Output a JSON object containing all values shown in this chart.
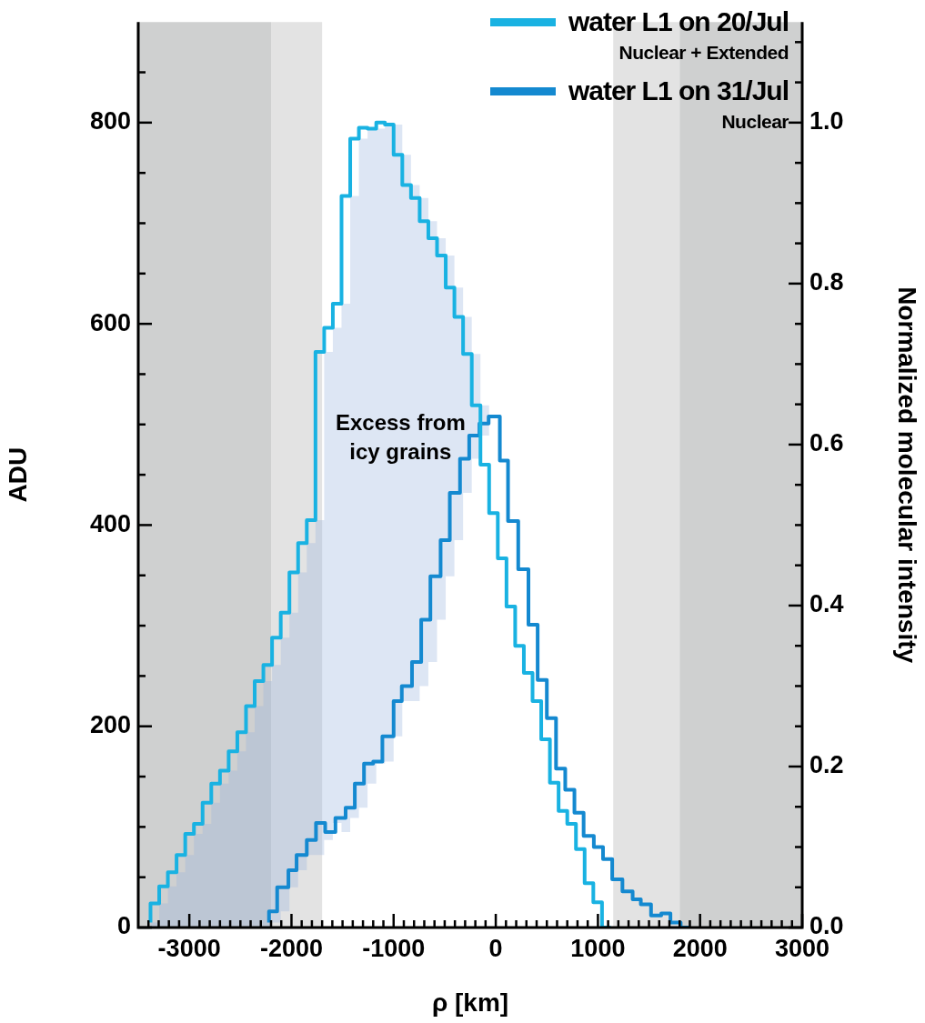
{
  "chart_data": {
    "type": "step",
    "xlabel": "ρ [km]",
    "ylabel": "ADU",
    "y2label": "Normalized molecular intensity",
    "xlim": [
      -3500,
      3000
    ],
    "ylim": [
      0,
      900
    ],
    "y2lim": [
      0,
      1.125
    ],
    "grid": false,
    "legend": "top right",
    "xticks": [
      {
        "value": -3400,
        "label": null
      },
      {
        "value": -3300,
        "label": null
      },
      {
        "value": -3200,
        "label": null
      },
      {
        "value": -3100,
        "label": null
      },
      -3000,
      {
        "value": -2900,
        "label": null
      },
      {
        "value": -2800,
        "label": null
      },
      {
        "value": -2700,
        "label": null
      },
      {
        "value": -2600,
        "label": null
      },
      {
        "value": -2500,
        "label": null
      },
      {
        "value": -2400,
        "label": null
      },
      {
        "value": -2300,
        "label": null
      },
      {
        "value": -2200,
        "label": null
      },
      {
        "value": -2100,
        "label": null
      },
      -2000,
      {
        "value": -1900,
        "label": null
      },
      {
        "value": -1800,
        "label": null
      },
      {
        "value": -1700,
        "label": null
      },
      {
        "value": -1600,
        "label": null
      },
      {
        "value": -1500,
        "label": null
      },
      {
        "value": -1400,
        "label": null
      },
      {
        "value": -1300,
        "label": null
      },
      {
        "value": -1200,
        "label": null
      },
      {
        "value": -1100,
        "label": null
      },
      -1000,
      {
        "value": -900,
        "label": null
      },
      {
        "value": -800,
        "label": null
      },
      {
        "value": -700,
        "label": null
      },
      {
        "value": -600,
        "label": null
      },
      {
        "value": -500,
        "label": null
      },
      {
        "value": -400,
        "label": null
      },
      {
        "value": -300,
        "label": null
      },
      {
        "value": -200,
        "label": null
      },
      {
        "value": -100,
        "label": null
      },
      0,
      {
        "value": 100,
        "label": null
      },
      {
        "value": 200,
        "label": null
      },
      {
        "value": 300,
        "label": null
      },
      {
        "value": 400,
        "label": null
      },
      {
        "value": 500,
        "label": null
      },
      {
        "value": 600,
        "label": null
      },
      {
        "value": 700,
        "label": null
      },
      {
        "value": 800,
        "label": null
      },
      {
        "value": 900,
        "label": null
      },
      1000,
      {
        "value": 1100,
        "label": null
      },
      {
        "value": 1200,
        "label": null
      },
      {
        "value": 1300,
        "label": null
      },
      {
        "value": 1400,
        "label": null
      },
      {
        "value": 1500,
        "label": null
      },
      {
        "value": 1600,
        "label": null
      },
      {
        "value": 1700,
        "label": null
      },
      {
        "value": 1800,
        "label": null
      },
      {
        "value": 1900,
        "label": null
      },
      2000,
      {
        "value": 2100,
        "label": null
      },
      {
        "value": 2200,
        "label": null
      },
      {
        "value": 2300,
        "label": null
      },
      {
        "value": 2400,
        "label": null
      },
      {
        "value": 2500,
        "label": null
      },
      {
        "value": 2600,
        "label": null
      },
      {
        "value": 2700,
        "label": null
      },
      {
        "value": 2800,
        "label": null
      },
      {
        "value": 2900,
        "label": null
      },
      3000
    ],
    "yticks": [
      0,
      {
        "value": 50,
        "label": null
      },
      {
        "value": 100,
        "label": null
      },
      {
        "value": 150,
        "label": null
      },
      200,
      {
        "value": 250,
        "label": null
      },
      {
        "value": 300,
        "label": null
      },
      {
        "value": 350,
        "label": null
      },
      400,
      {
        "value": 450,
        "label": null
      },
      {
        "value": 500,
        "label": null
      },
      {
        "value": 550,
        "label": null
      },
      600,
      {
        "value": 650,
        "label": null
      },
      {
        "value": 700,
        "label": null
      },
      {
        "value": 750,
        "label": null
      },
      800,
      {
        "value": 850,
        "label": null
      }
    ],
    "y2ticks": [
      {
        "value": 0,
        "label": "0.0"
      },
      {
        "value": 0.05,
        "label": null
      },
      {
        "value": 0.1,
        "label": null
      },
      {
        "value": 0.15,
        "label": null
      },
      {
        "value": 0.2,
        "label": "0.2"
      },
      {
        "value": 0.25,
        "label": null
      },
      {
        "value": 0.3,
        "label": null
      },
      {
        "value": 0.35,
        "label": null
      },
      {
        "value": 0.4,
        "label": "0.4"
      },
      {
        "value": 0.45,
        "label": null
      },
      {
        "value": 0.5,
        "label": null
      },
      {
        "value": 0.55,
        "label": null
      },
      {
        "value": 0.6,
        "label": "0.6"
      },
      {
        "value": 0.65,
        "label": null
      },
      {
        "value": 0.7,
        "label": null
      },
      {
        "value": 0.75,
        "label": null
      },
      {
        "value": 0.8,
        "label": "0.8"
      },
      {
        "value": 0.85,
        "label": null
      },
      {
        "value": 0.9,
        "label": null
      },
      {
        "value": 0.95,
        "label": null
      },
      {
        "value": 1.0,
        "label": "1.0"
      },
      {
        "value": 1.05,
        "label": null
      },
      {
        "value": 1.1,
        "label": null
      }
    ],
    "bands": [
      {
        "axis": "x",
        "from": -3500,
        "to": -2200,
        "color": "#cfd0d0"
      },
      {
        "axis": "x",
        "from": -2200,
        "to": -1700,
        "color": "#e3e3e3"
      },
      {
        "axis": "x",
        "from": 1150,
        "to": 1800,
        "color": "#e3e3e3"
      },
      {
        "axis": "x",
        "from": 1800,
        "to": 3000,
        "color": "#cfd0d0"
      }
    ],
    "series": [
      {
        "name": "water L1 on 20/Jul",
        "color": "#19b2e2",
        "x": [
          -3380,
          -3295,
          -3210,
          -3125,
          -3040,
          -2955,
          -2870,
          -2785,
          -2700,
          -2615,
          -2530,
          -2445,
          -2360,
          -2275,
          -2190,
          -2105,
          -2020,
          -1935,
          -1850,
          -1765,
          -1680,
          -1595,
          -1510,
          -1425,
          -1340,
          -1255,
          -1170,
          -1085,
          -1000,
          -915,
          -830,
          -745,
          -660,
          -575,
          -490,
          -405,
          -320,
          -235,
          -150,
          -65,
          20,
          105,
          190,
          275,
          360,
          445,
          530,
          615,
          700,
          785,
          870,
          955,
          1040,
          1125
        ],
        "values": [
          5,
          24,
          41,
          55,
          72,
          93,
          103,
          124,
          143,
          156,
          175,
          194,
          220,
          245,
          261,
          288,
          313,
          353,
          382,
          405,
          572,
          596,
          620,
          727,
          784,
          795,
          794,
          800,
          798,
          768,
          738,
          725,
          702,
          685,
          668,
          636,
          607,
          570,
          519,
          460,
          412,
          367,
          319,
          280,
          253,
          225,
          187,
          144,
          116,
          103,
          78,
          44,
          25,
          0
        ],
        "lower": [
          0,
          0,
          0,
          0,
          0,
          0,
          0,
          0,
          0,
          0,
          0,
          0,
          0,
          0,
          5,
          16,
          40,
          57,
          72,
          72,
          87,
          104,
          95,
          109,
          119,
          143,
          163,
          165,
          190,
          225,
          225,
          240,
          264,
          306,
          349,
          385,
          432,
          466,
          489,
          460,
          412,
          367,
          319,
          280,
          253,
          225,
          187,
          144,
          116,
          103,
          78,
          44,
          25,
          0
        ],
        "upper": [
          5,
          24,
          41,
          55,
          72,
          93,
          103,
          124,
          143,
          156,
          175,
          194,
          220,
          245,
          261,
          288,
          313,
          353,
          382,
          405,
          572,
          596,
          620,
          727,
          784,
          795,
          794,
          800,
          798,
          768,
          738,
          725,
          702,
          685,
          668,
          636,
          607,
          570,
          519,
          460,
          412,
          367,
          319,
          280,
          253,
          225,
          187,
          144,
          116,
          103,
          78,
          44,
          25,
          0
        ]
      },
      {
        "name": "water L1 on 31/Jul",
        "color": "#1489d0",
        "x": [
          -2220,
          -2140,
          -2030,
          -1950,
          -1850,
          -1760,
          -1670,
          -1570,
          -1470,
          -1380,
          -1290,
          -1200,
          -1110,
          -1000,
          -920,
          -820,
          -730,
          -640,
          -540,
          -450,
          -350,
          -260,
          -160,
          -70,
          40,
          120,
          220,
          320,
          410,
          500,
          590,
          680,
          770,
          860,
          960,
          1050,
          1140,
          1240,
          1340,
          1420,
          1520,
          1620,
          1710,
          1810,
          1900
        ],
        "values": [
          5,
          16,
          40,
          57,
          72,
          87,
          104,
          95,
          109,
          119,
          143,
          163,
          165,
          190,
          225,
          240,
          264,
          306,
          349,
          385,
          432,
          466,
          489,
          501,
          508,
          464,
          404,
          356,
          301,
          246,
          208,
          158,
          137,
          114,
          91,
          80,
          68,
          48,
          36,
          28,
          23,
          12,
          14,
          5,
          0
        ]
      }
    ],
    "annotations": [
      "Nuclear + Extended",
      "Nuclear",
      "Excess from icy grains"
    ]
  }
}
